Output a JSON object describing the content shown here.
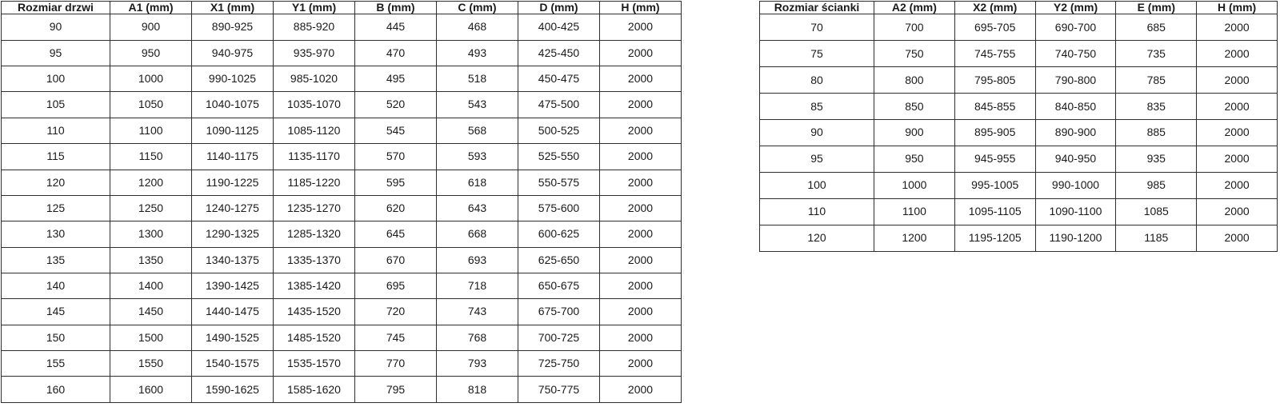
{
  "page": {
    "background_color": "#ffffff",
    "table_border_color": "#2e2e2e",
    "text_color": "#1a1a1a"
  },
  "door_table": {
    "headers": [
      "Rozmiar drzwi",
      "A1 (mm)",
      "X1 (mm)",
      "Y1 (mm)",
      "B (mm)",
      "C (mm)",
      "D (mm)",
      "H (mm)"
    ],
    "rows": [
      [
        "90",
        "900",
        "890-925",
        "885-920",
        "445",
        "468",
        "400-425",
        "2000"
      ],
      [
        "95",
        "950",
        "940-975",
        "935-970",
        "470",
        "493",
        "425-450",
        "2000"
      ],
      [
        "100",
        "1000",
        "990-1025",
        "985-1020",
        "495",
        "518",
        "450-475",
        "2000"
      ],
      [
        "105",
        "1050",
        "1040-1075",
        "1035-1070",
        "520",
        "543",
        "475-500",
        "2000"
      ],
      [
        "110",
        "1100",
        "1090-1125",
        "1085-1120",
        "545",
        "568",
        "500-525",
        "2000"
      ],
      [
        "115",
        "1150",
        "1140-1175",
        "1135-1170",
        "570",
        "593",
        "525-550",
        "2000"
      ],
      [
        "120",
        "1200",
        "1190-1225",
        "1185-1220",
        "595",
        "618",
        "550-575",
        "2000"
      ],
      [
        "125",
        "1250",
        "1240-1275",
        "1235-1270",
        "620",
        "643",
        "575-600",
        "2000"
      ],
      [
        "130",
        "1300",
        "1290-1325",
        "1285-1320",
        "645",
        "668",
        "600-625",
        "2000"
      ],
      [
        "135",
        "1350",
        "1340-1375",
        "1335-1370",
        "670",
        "693",
        "625-650",
        "2000"
      ],
      [
        "140",
        "1400",
        "1390-1425",
        "1385-1420",
        "695",
        "718",
        "650-675",
        "2000"
      ],
      [
        "145",
        "1450",
        "1440-1475",
        "1435-1520",
        "720",
        "743",
        "675-700",
        "2000"
      ],
      [
        "150",
        "1500",
        "1490-1525",
        "1485-1520",
        "745",
        "768",
        "700-725",
        "2000"
      ],
      [
        "155",
        "1550",
        "1540-1575",
        "1535-1570",
        "770",
        "793",
        "725-750",
        "2000"
      ],
      [
        "160",
        "1600",
        "1590-1625",
        "1585-1620",
        "795",
        "818",
        "750-775",
        "2000"
      ]
    ]
  },
  "panel_table": {
    "headers": [
      "Rozmiar ścianki",
      "A2 (mm)",
      "X2 (mm)",
      "Y2 (mm)",
      "E (mm)",
      "H (mm)"
    ],
    "rows": [
      [
        "70",
        "700",
        "695-705",
        "690-700",
        "685",
        "2000"
      ],
      [
        "75",
        "750",
        "745-755",
        "740-750",
        "735",
        "2000"
      ],
      [
        "80",
        "800",
        "795-805",
        "790-800",
        "785",
        "2000"
      ],
      [
        "85",
        "850",
        "845-855",
        "840-850",
        "835",
        "2000"
      ],
      [
        "90",
        "900",
        "895-905",
        "890-900",
        "885",
        "2000"
      ],
      [
        "95",
        "950",
        "945-955",
        "940-950",
        "935",
        "2000"
      ],
      [
        "100",
        "1000",
        "995-1005",
        "990-1000",
        "985",
        "2000"
      ],
      [
        "110",
        "1100",
        "1095-1105",
        "1090-1100",
        "1085",
        "2000"
      ],
      [
        "120",
        "1200",
        "1195-1205",
        "1190-1200",
        "1185",
        "2000"
      ]
    ]
  }
}
